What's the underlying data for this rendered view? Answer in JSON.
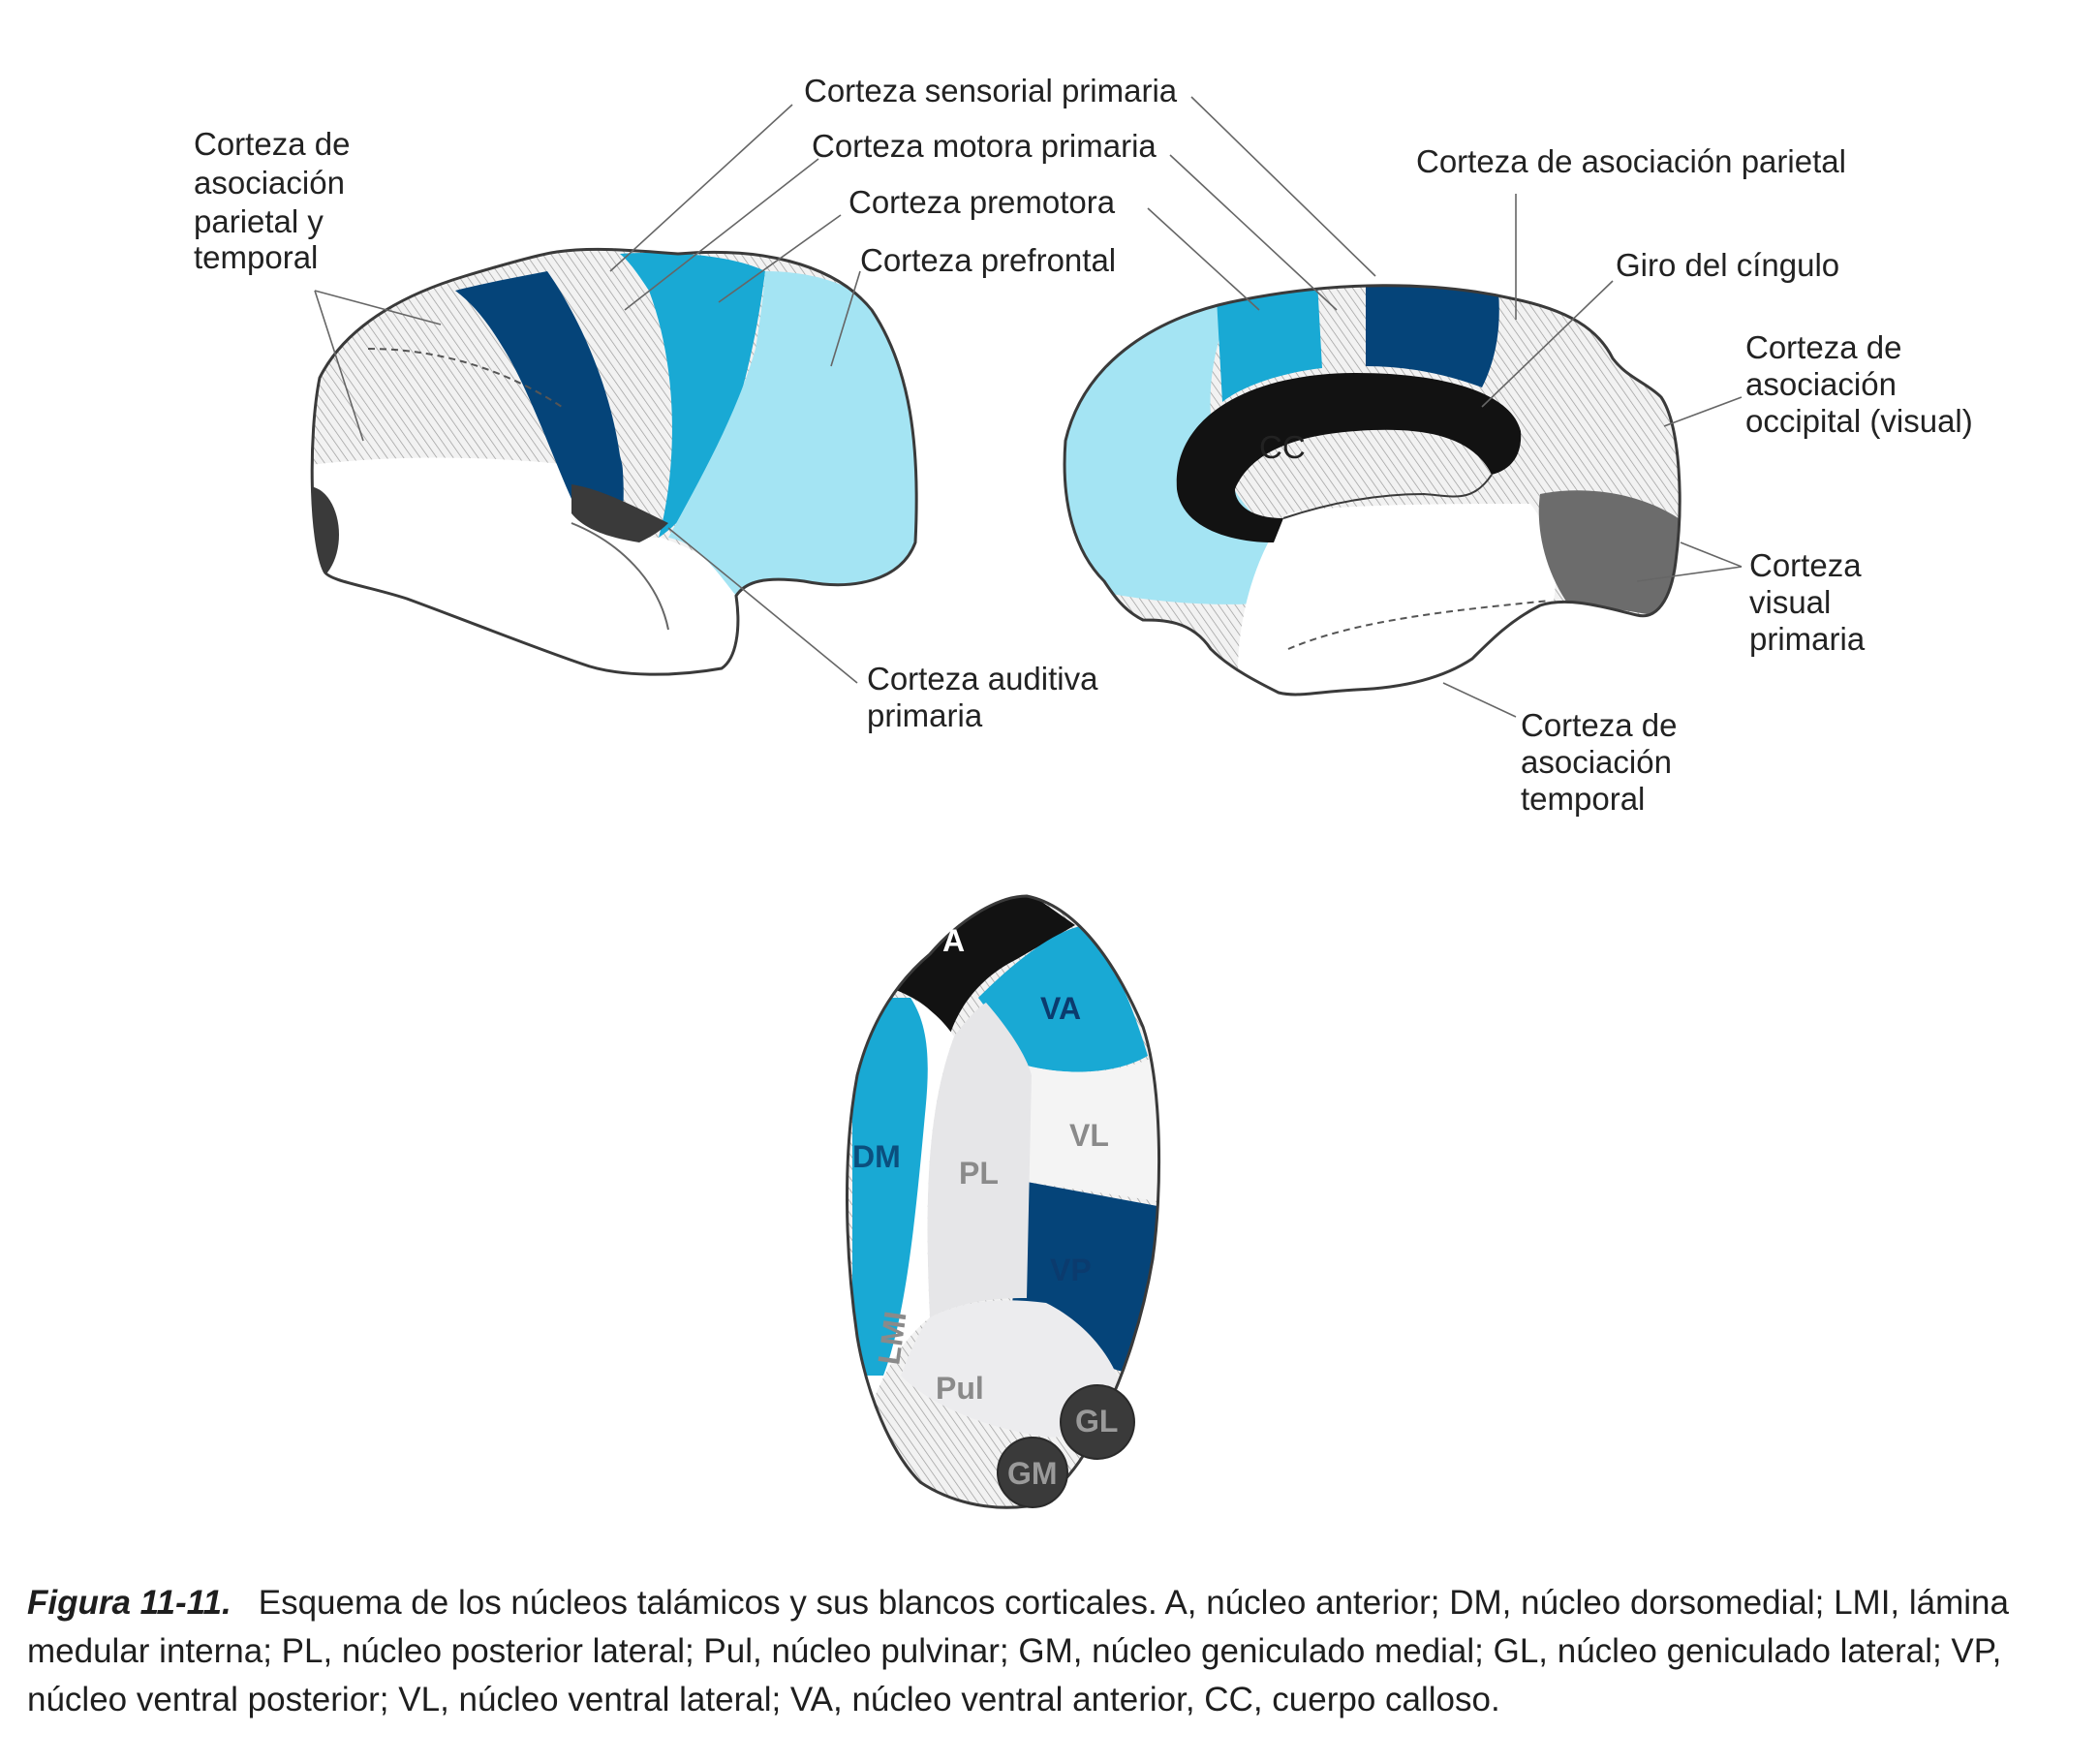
{
  "colors": {
    "dark_blue": "#054479",
    "medium_blue": "#19a9d4",
    "light_blue": "#a4e4f3",
    "hatch_gray": "#e8e8ea",
    "black": "#121212",
    "dark_gray": "#3a3a3a",
    "mid_gray": "#6c6c6c"
  },
  "lateral_view": {
    "labels": {
      "parietal_temporal": [
        "Corteza de",
        "asociación",
        "parietal y",
        "temporal"
      ],
      "sensorial": "Corteza sensorial primaria",
      "motora": "Corteza motora primaria",
      "premotora": "Corteza premotora",
      "prefrontal": "Corteza prefrontal",
      "auditiva": [
        "Corteza auditiva",
        "primaria"
      ]
    }
  },
  "medial_view": {
    "labels": {
      "parietal": "Corteza de asociación parietal",
      "cingulo": "Giro del cíngulo",
      "occipital": [
        "Corteza de",
        "asociación",
        "occipital (visual)"
      ],
      "visual": [
        "Corteza",
        "visual",
        "primaria"
      ],
      "temporal": [
        "Corteza de",
        "asociación",
        "temporal"
      ],
      "cc": "CC"
    }
  },
  "thalamus": {
    "nuclei": {
      "a": "A",
      "va": "VA",
      "vl": "VL",
      "vp": "VP",
      "dm": "DM",
      "pl": "PL",
      "lmi": "LMI",
      "pul": "Pul",
      "gl": "GL",
      "gm": "GM"
    }
  },
  "caption": {
    "title": "Figura 11-11.",
    "text": "Esquema de los núcleos talámicos y sus blancos corticales. A, núcleo anterior; DM, núcleo dorsomedial; LMI, lámina medular interna; PL, núcleo posterior lateral; Pul, núcleo pulvinar; GM, núcleo geniculado medial; GL, núcleo geniculado lateral; VP, núcleo ventral posterior; VL, núcleo ventral lateral; VA, núcleo ventral anterior, CC, cuerpo calloso."
  }
}
